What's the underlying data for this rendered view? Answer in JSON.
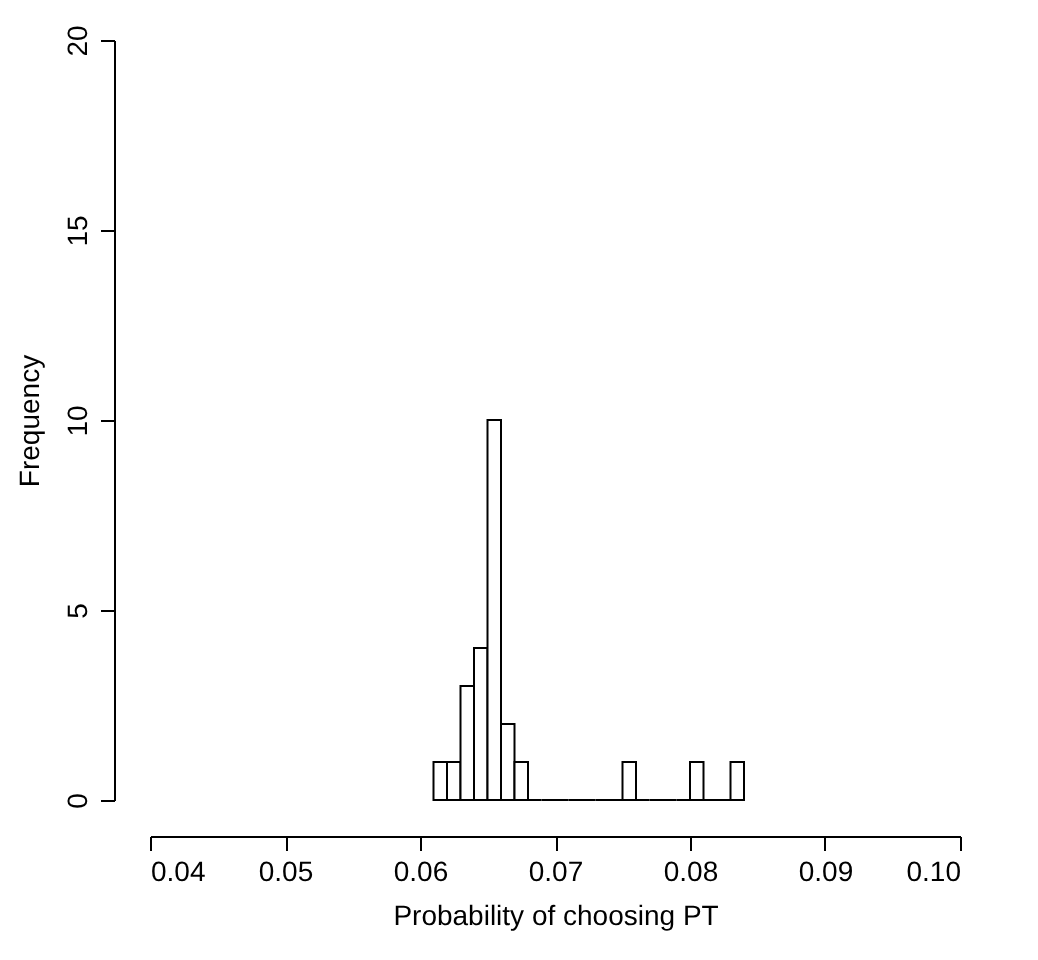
{
  "chart_data": {
    "type": "histogram",
    "xlabel": "Probability of choosing PT",
    "ylabel": "Frequency",
    "bins": [
      0.061,
      0.062,
      0.063,
      0.064,
      0.065,
      0.066,
      0.067,
      0.068,
      0.069,
      0.07,
      0.071,
      0.072,
      0.073,
      0.074,
      0.075,
      0.076,
      0.077,
      0.078,
      0.079,
      0.08,
      0.081,
      0.082,
      0.083,
      0.084
    ],
    "values": [
      1,
      1,
      3,
      4,
      10,
      2,
      1,
      0,
      0,
      0,
      0,
      0,
      0,
      0,
      1,
      0,
      0,
      0,
      0,
      1,
      0,
      0,
      1
    ],
    "xlim": [
      0.04,
      0.1
    ],
    "xticks": [
      0.04,
      0.05,
      0.06,
      0.07,
      0.08,
      0.09,
      {
        "value": 0.1,
        "label": "0.10"
      }
    ],
    "ylim": [
      0,
      20
    ],
    "yticks": [
      0,
      5,
      10,
      15,
      20
    ],
    "grid": false
  }
}
